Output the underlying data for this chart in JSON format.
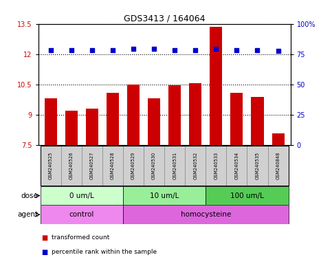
{
  "title": "GDS3413 / 164064",
  "samples": [
    "GSM240525",
    "GSM240526",
    "GSM240527",
    "GSM240528",
    "GSM240529",
    "GSM240530",
    "GSM240531",
    "GSM240532",
    "GSM240533",
    "GSM240534",
    "GSM240535",
    "GSM240848"
  ],
  "red_values": [
    9.8,
    9.2,
    9.3,
    10.1,
    10.5,
    9.8,
    10.45,
    10.55,
    13.35,
    10.1,
    9.9,
    8.1
  ],
  "blue_values": [
    12.2,
    12.2,
    12.2,
    12.2,
    12.25,
    12.25,
    12.2,
    12.2,
    12.25,
    12.2,
    12.2,
    12.15
  ],
  "ylim": [
    7.5,
    13.5
  ],
  "yticks_left": [
    7.5,
    9.0,
    10.5,
    12.0,
    13.5
  ],
  "yticks_right": [
    0,
    25,
    50,
    75,
    100
  ],
  "yright_labels": [
    "0",
    "25",
    "50",
    "75",
    "100%"
  ],
  "red_color": "#cc0000",
  "blue_color": "#0000cc",
  "bar_width": 0.6,
  "dose_groups": [
    {
      "label": "0 um/L",
      "start": 0,
      "end": 4,
      "color": "#ccffcc"
    },
    {
      "label": "10 um/L",
      "start": 4,
      "end": 8,
      "color": "#99ee99"
    },
    {
      "label": "100 um/L",
      "start": 8,
      "end": 12,
      "color": "#55cc55"
    }
  ],
  "agent_groups": [
    {
      "label": "control",
      "start": 0,
      "end": 4,
      "color": "#ee88ee"
    },
    {
      "label": "homocysteine",
      "start": 4,
      "end": 12,
      "color": "#dd66dd"
    }
  ],
  "dose_label": "dose",
  "agent_label": "agent",
  "legend_red": "transformed count",
  "legend_blue": "percentile rank within the sample",
  "tick_label_color_left": "#cc0000",
  "tick_label_color_right": "#0000cc"
}
